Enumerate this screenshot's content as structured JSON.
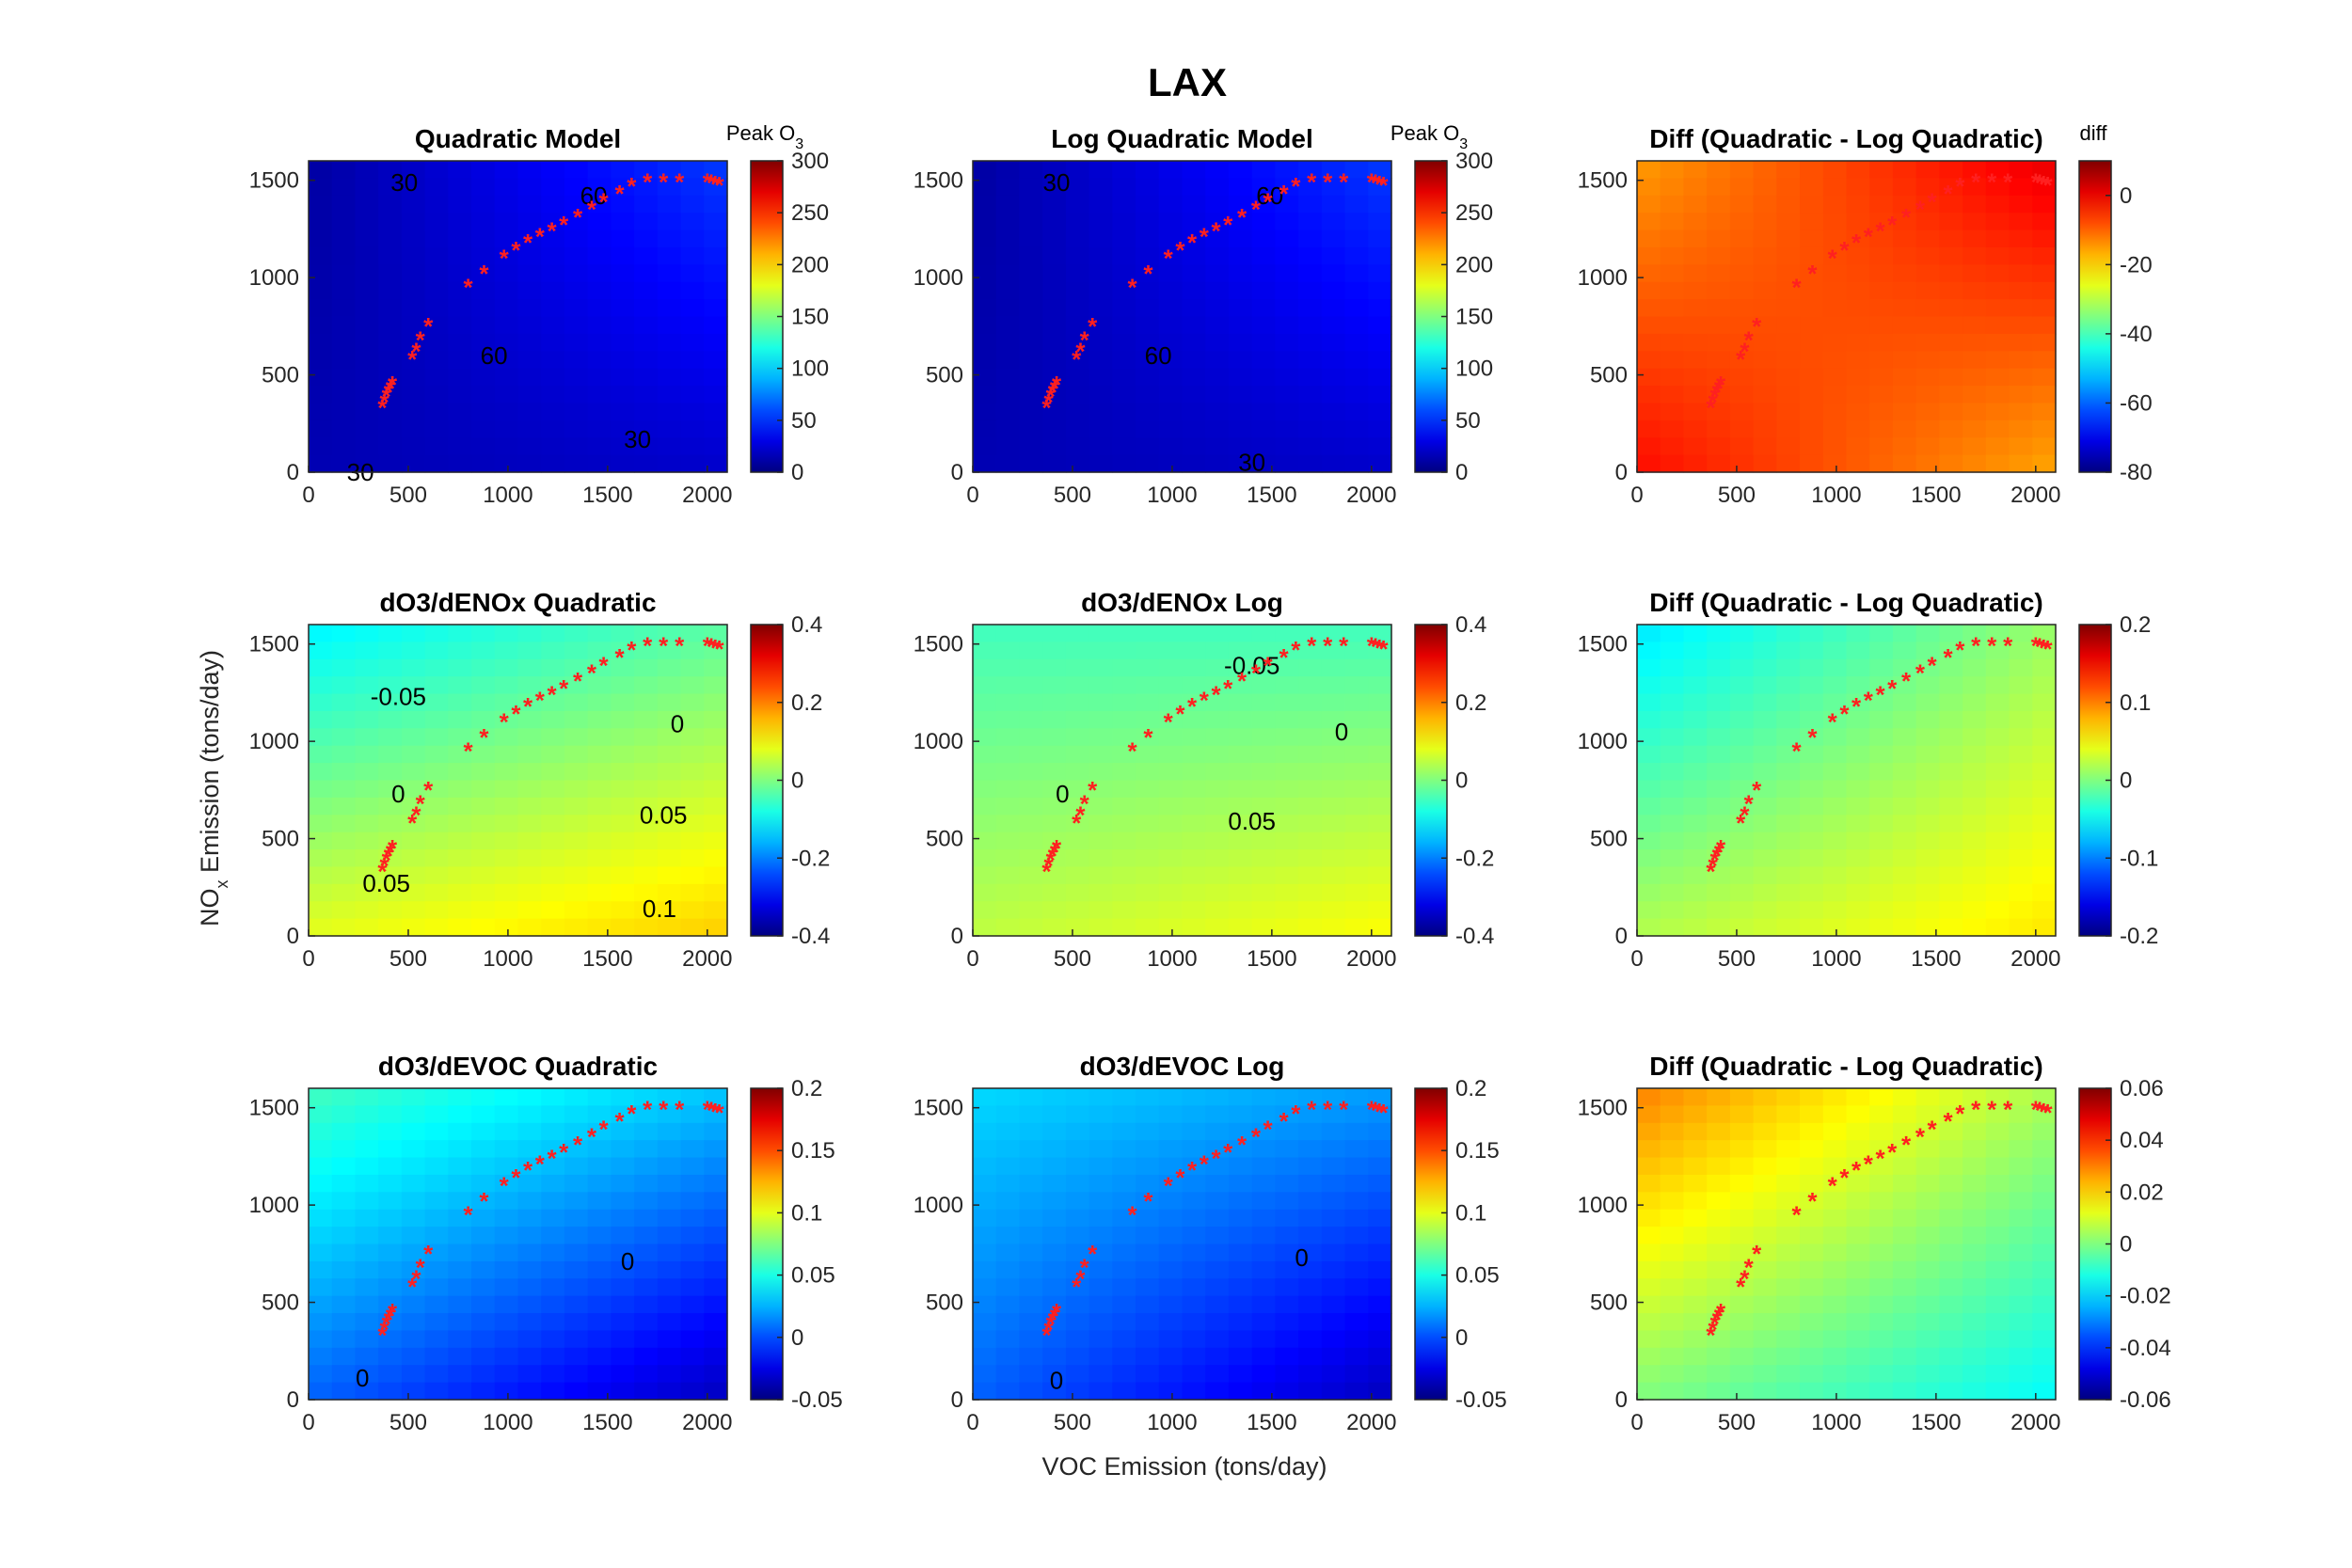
{
  "figure": {
    "title": "LAX",
    "xlabel": "VOC Emission (tons/day)",
    "ylabel": "NOx Emission (tons/day)"
  },
  "chart_data": [
    {
      "type": "heatmap",
      "title": "Quadratic Model",
      "colorbar_title": "Peak O3",
      "xlim": [
        0,
        2100
      ],
      "ylim": [
        0,
        1600
      ],
      "xticks": [
        0,
        500,
        1000,
        1500,
        2000
      ],
      "yticks": [
        0,
        500,
        1000,
        1500
      ],
      "clim": [
        0,
        300
      ],
      "cticks": [
        0,
        50,
        100,
        150,
        200,
        250,
        300
      ],
      "corners": {
        "bl": 15,
        "br": 22,
        "tl": 10,
        "tr": 55
      },
      "contour_labels": [
        {
          "text": "30",
          "x": 480,
          "y": 1490
        },
        {
          "text": "60",
          "x": 1430,
          "y": 1420
        },
        {
          "text": "60",
          "x": 930,
          "y": 600
        },
        {
          "text": "30",
          "x": 1650,
          "y": 170
        },
        {
          "text": "30",
          "x": 260,
          "y": 0
        }
      ]
    },
    {
      "type": "heatmap",
      "title": "Log Quadratic Model",
      "colorbar_title": "Peak O3",
      "xlim": [
        0,
        2100
      ],
      "ylim": [
        0,
        1600
      ],
      "xticks": [
        0,
        500,
        1000,
        1500,
        2000
      ],
      "yticks": [
        0,
        500,
        1000,
        1500
      ],
      "clim": [
        0,
        300
      ],
      "cticks": [
        0,
        50,
        100,
        150,
        200,
        250,
        300
      ],
      "corners": {
        "bl": 15,
        "br": 22,
        "tl": 10,
        "tr": 55
      },
      "contour_labels": [
        {
          "text": "30",
          "x": 420,
          "y": 1490
        },
        {
          "text": "60",
          "x": 1490,
          "y": 1420
        },
        {
          "text": "60",
          "x": 930,
          "y": 600
        },
        {
          "text": "30",
          "x": 1400,
          "y": 50
        }
      ]
    },
    {
      "type": "heatmap",
      "title": "Diff (Quadratic - Log Quadratic)",
      "colorbar_title": "diff",
      "xlim": [
        0,
        2100
      ],
      "ylim": [
        0,
        1600
      ],
      "xticks": [
        0,
        500,
        1000,
        1500,
        2000
      ],
      "yticks": [
        0,
        500,
        1000,
        1500
      ],
      "clim": [
        -80,
        10
      ],
      "cticks": [
        -80,
        -60,
        -40,
        -20,
        0
      ],
      "corners": {
        "bl": -2,
        "br": -16,
        "tl": -15,
        "tr": 1
      },
      "contour_labels": []
    },
    {
      "type": "heatmap",
      "title": "dO3/dENOx Quadratic",
      "colorbar_title": "",
      "xlim": [
        0,
        2100
      ],
      "ylim": [
        0,
        1600
      ],
      "xticks": [
        0,
        500,
        1000,
        1500,
        2000
      ],
      "yticks": [
        0,
        500,
        1000,
        1500
      ],
      "clim": [
        -0.4,
        0.4
      ],
      "cticks": [
        -0.4,
        -0.2,
        0,
        0.2,
        0.4
      ],
      "corners": {
        "bl": 0.08,
        "br": 0.14,
        "tl": -0.11,
        "tr": -0.03
      },
      "contour_labels": [
        {
          "text": "-0.05",
          "x": 450,
          "y": 1230
        },
        {
          "text": "0",
          "x": 1850,
          "y": 1090
        },
        {
          "text": "0",
          "x": 450,
          "y": 730
        },
        {
          "text": "0.05",
          "x": 1780,
          "y": 620
        },
        {
          "text": "0.05",
          "x": 390,
          "y": 270
        },
        {
          "text": "0.1",
          "x": 1760,
          "y": 140
        }
      ]
    },
    {
      "type": "heatmap",
      "title": "dO3/dENOx Log",
      "colorbar_title": "",
      "xlim": [
        0,
        2100
      ],
      "ylim": [
        0,
        1600
      ],
      "xticks": [
        0,
        500,
        1000,
        1500,
        2000
      ],
      "yticks": [
        0,
        500,
        1000,
        1500
      ],
      "clim": [
        -0.4,
        0.4
      ],
      "cticks": [
        -0.4,
        -0.2,
        0,
        0.2,
        0.4
      ],
      "corners": {
        "bl": 0.05,
        "br": 0.1,
        "tl": -0.05,
        "tr": -0.05
      },
      "contour_labels": [
        {
          "text": "-0.05",
          "x": 1400,
          "y": 1390
        },
        {
          "text": "0",
          "x": 1850,
          "y": 1050
        },
        {
          "text": "0",
          "x": 450,
          "y": 730
        },
        {
          "text": "0.05",
          "x": 1400,
          "y": 590
        }
      ]
    },
    {
      "type": "heatmap",
      "title": "Diff (Quadratic - Log Quadratic)",
      "colorbar_title": "",
      "xlim": [
        0,
        2100
      ],
      "ylim": [
        0,
        1600
      ],
      "xticks": [
        0,
        500,
        1000,
        1500,
        2000
      ],
      "yticks": [
        0,
        500,
        1000,
        1500
      ],
      "clim": [
        -0.2,
        0.2
      ],
      "cticks": [
        -0.2,
        -0.1,
        0,
        0.1,
        0.2
      ],
      "corners": {
        "bl": 0.02,
        "br": 0.06,
        "tl": -0.06,
        "tr": 0.01
      },
      "contour_labels": []
    },
    {
      "type": "heatmap",
      "title": "dO3/dEVOC Quadratic",
      "colorbar_title": "",
      "xlim": [
        0,
        2100
      ],
      "ylim": [
        0,
        1600
      ],
      "xticks": [
        0,
        500,
        1000,
        1500,
        2000
      ],
      "yticks": [
        0,
        500,
        1000,
        1500
      ],
      "clim": [
        -0.05,
        0.2
      ],
      "cticks": [
        -0.05,
        0,
        0.05,
        0.1,
        0.15,
        0.2
      ],
      "corners": {
        "bl": 0.005,
        "br": -0.035,
        "tl": 0.06,
        "tr": 0.03
      },
      "contour_labels": [
        {
          "text": "0",
          "x": 1600,
          "y": 710
        },
        {
          "text": "0",
          "x": 270,
          "y": 110
        }
      ]
    },
    {
      "type": "heatmap",
      "title": "dO3/dEVOC Log",
      "colorbar_title": "",
      "xlim": [
        0,
        2100
      ],
      "ylim": [
        0,
        1600
      ],
      "xticks": [
        0,
        500,
        1000,
        1500,
        2000
      ],
      "yticks": [
        0,
        500,
        1000,
        1500
      ],
      "clim": [
        -0.05,
        0.2
      ],
      "cticks": [
        -0.05,
        0,
        0.05,
        0.1,
        0.15,
        0.2
      ],
      "corners": {
        "bl": 0.005,
        "br": -0.035,
        "tl": 0.035,
        "tr": 0.02
      },
      "contour_labels": [
        {
          "text": "0",
          "x": 1650,
          "y": 730
        },
        {
          "text": "0",
          "x": 420,
          "y": 100
        }
      ]
    },
    {
      "type": "heatmap",
      "title": "Diff (Quadratic - Log Quadratic)",
      "colorbar_title": "",
      "xlim": [
        0,
        2100
      ],
      "ylim": [
        0,
        1600
      ],
      "xticks": [
        0,
        500,
        1000,
        1500,
        2000
      ],
      "yticks": [
        0,
        500,
        1000,
        1500
      ],
      "clim": [
        -0.06,
        0.06
      ],
      "cticks": [
        -0.06,
        -0.04,
        -0.02,
        0,
        0.02,
        0.04,
        0.06
      ],
      "corners": {
        "bl": 0.0,
        "br": -0.015,
        "tl": 0.03,
        "tr": 0.005
      },
      "contour_labels": []
    }
  ],
  "markers": {
    "x": [
      370,
      380,
      390,
      400,
      410,
      420,
      520,
      540,
      560,
      600,
      800,
      880,
      980,
      1040,
      1100,
      1160,
      1220,
      1280,
      1350,
      1420,
      1480,
      1560,
      1620,
      1700,
      1780,
      1860,
      2000,
      2020,
      2040,
      2060
    ],
    "y": [
      340,
      370,
      400,
      420,
      440,
      460,
      590,
      630,
      690,
      760,
      960,
      1030,
      1110,
      1150,
      1190,
      1220,
      1250,
      1280,
      1320,
      1360,
      1400,
      1440,
      1480,
      1500,
      1500,
      1500,
      1500,
      1495,
      1490,
      1485
    ]
  }
}
